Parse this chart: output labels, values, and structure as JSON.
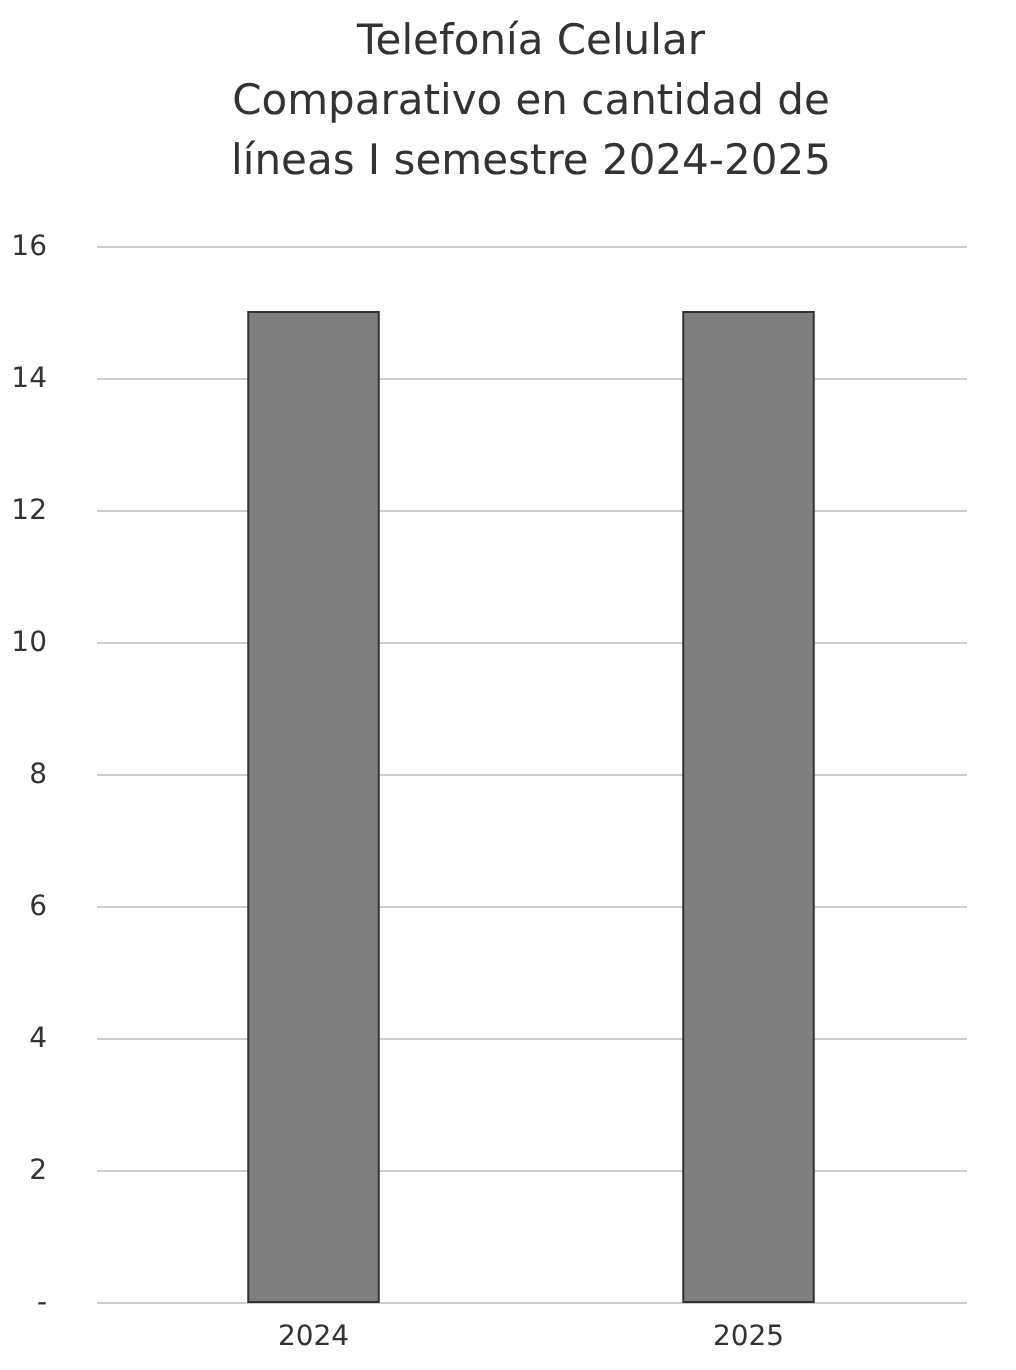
{
  "chart_data": {
    "type": "bar",
    "title": "Telefonía Celular\nComparativo en cantidad de\nlíneas I semestre 2024-2025",
    "categories": [
      "2024",
      "2025"
    ],
    "values": [
      15,
      15
    ],
    "color": "#7f7f7f",
    "ylim": [
      0,
      16
    ],
    "yticks": [
      {
        "value": 0,
        "label": "-"
      },
      2,
      4,
      6,
      8,
      10,
      12,
      14,
      16
    ],
    "grid": "y"
  }
}
